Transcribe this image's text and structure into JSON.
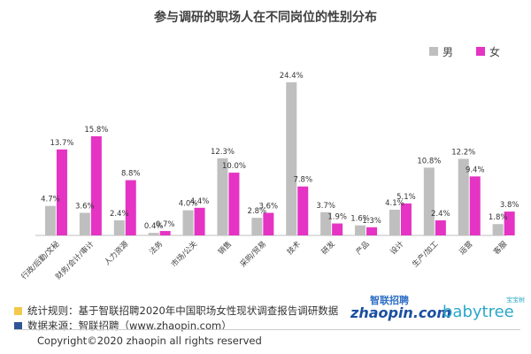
{
  "footer": {
    "source_note_1": "统计规则：基于智联招聘2020年中国职场女性现状调查报告调研数据",
    "source_note_2": "数据来源：智联招聘（www.zhaopin.com）",
    "copyright": "Copyright©2020  zhaopin all rights reserved",
    "logo_zhaopin_top": "智联招聘",
    "logo_zhaopin_main": "zhaopin.com",
    "logo_babytree_small": "宝宝树",
    "logo_babytree_main": "babytree",
    "note1_color": "#f2c94c",
    "note2_color": "#2e5597"
  },
  "chart_data": {
    "type": "bar",
    "title": "参与调研的职场人在不同岗位的性别分布",
    "categories": [
      "行政/后勤/文秘",
      "财务/会计/审计",
      "人力资源",
      "法务",
      "市场/公关",
      "销售",
      "采购/贸易",
      "技术",
      "研发",
      "产品",
      "设计",
      "生产/加工",
      "运营",
      "客服"
    ],
    "series": [
      {
        "name": "男",
        "color": "#bfbfbf",
        "values": [
          4.7,
          3.6,
          2.4,
          0.4,
          4.0,
          12.3,
          2.8,
          24.4,
          3.7,
          1.6,
          4.1,
          10.8,
          12.2,
          1.8
        ],
        "labels": [
          "4.7%",
          "3.6%",
          "2.4%",
          "0.4%",
          "4.0%",
          "12.3%",
          "2.8%",
          "24.4%",
          "3.7%",
          "1.6%",
          "4.1%",
          "10.8%",
          "12.2%",
          "1.8%"
        ]
      },
      {
        "name": "女",
        "color": "#e533c4",
        "values": [
          13.7,
          15.8,
          8.8,
          0.7,
          4.4,
          10.0,
          3.6,
          7.8,
          1.9,
          1.3,
          5.1,
          2.4,
          9.4,
          3.8
        ],
        "labels": [
          "13.7%",
          "15.8%",
          "8.8%",
          "0.7%",
          "4.4%",
          "10.0%",
          "3.6%",
          "7.8%",
          "1.9%",
          "1.3%",
          "5.1%",
          "2.4%",
          "9.4%",
          "3.8%"
        ]
      }
    ],
    "ylim": [
      0,
      24.4
    ],
    "legend_position": "top-right",
    "grid": false
  }
}
